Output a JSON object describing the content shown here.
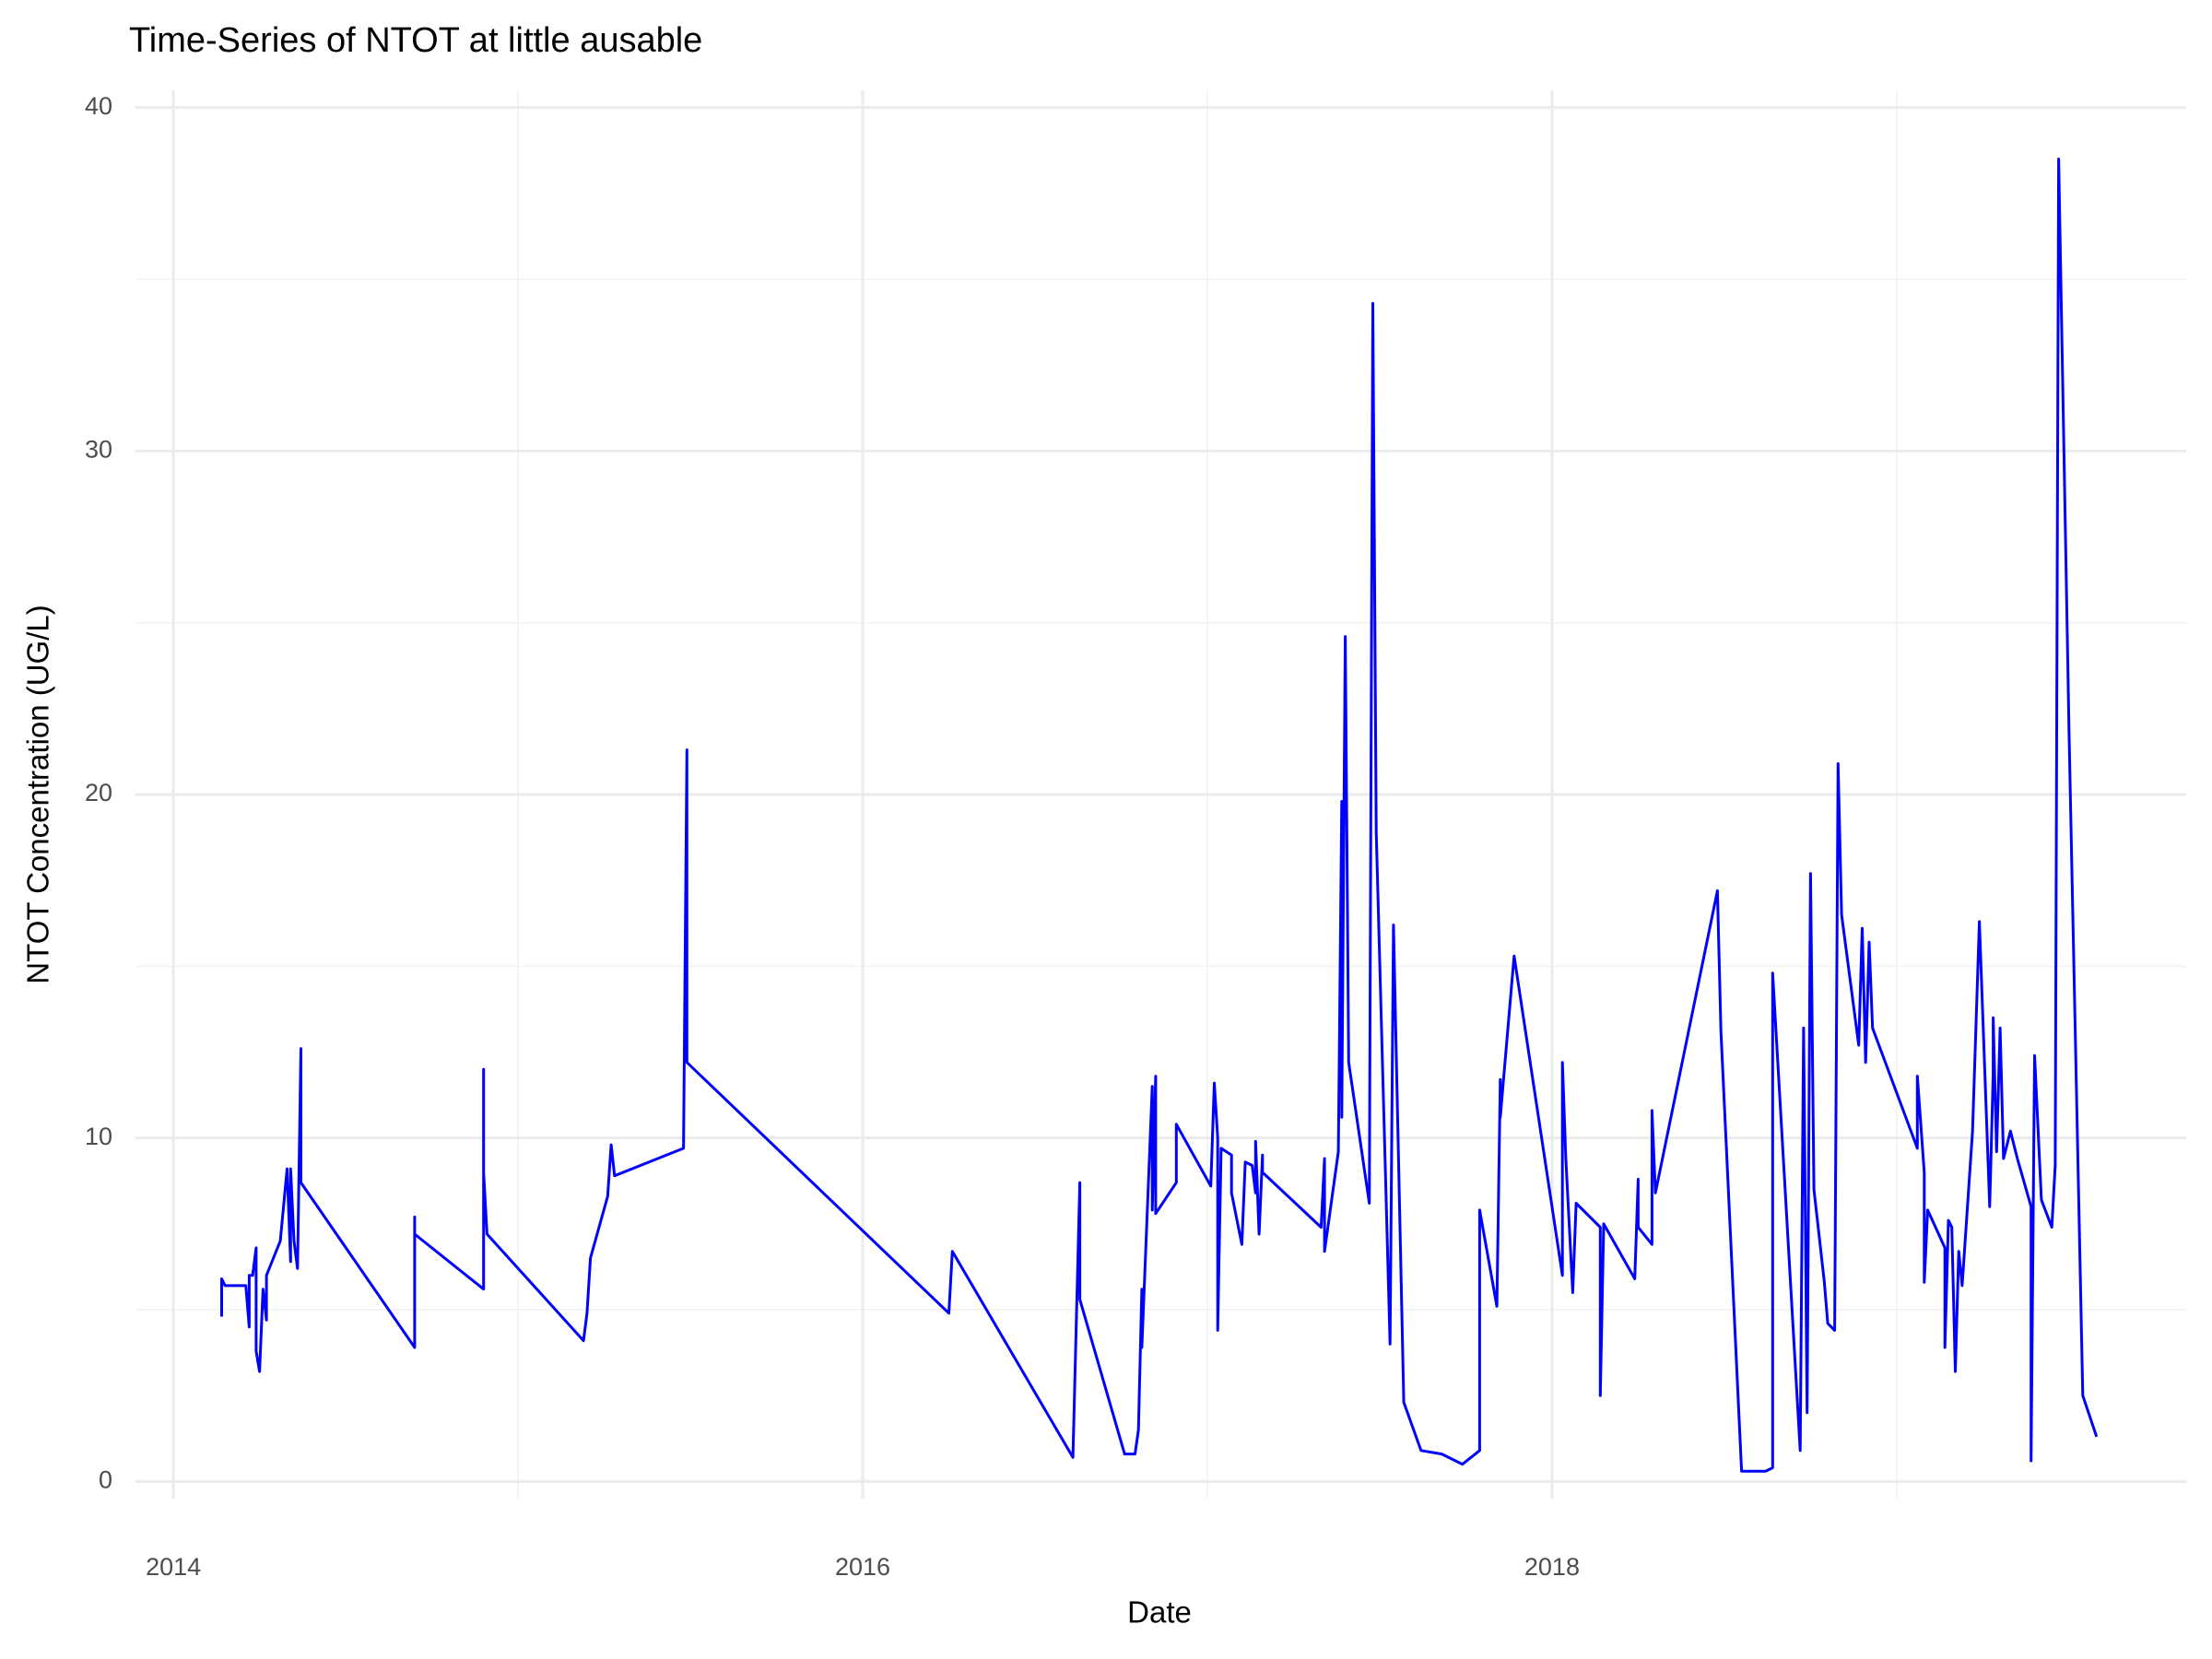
{
  "chart_data": {
    "type": "line",
    "title": "Time-Series of NTOT at little ausable",
    "x_label": "Date",
    "y_label": "NTOT Concentration (UG/L)",
    "color": "#0000ff",
    "grid": true,
    "xlim": [
      2013.89,
      2019.84
    ],
    "ylim": [
      -0.5,
      40.5
    ],
    "xticks": [
      2014,
      2016,
      2018
    ],
    "yticks": [
      0,
      10,
      20,
      30,
      40
    ],
    "xminor": [
      2015,
      2017,
      2019
    ],
    "yminor": [
      5,
      15,
      25,
      35
    ],
    "x": [
      2014.14,
      2014.14,
      2014.15,
      2014.21,
      2014.22,
      2014.22,
      2014.23,
      2014.24,
      2014.24,
      2014.25,
      2014.26,
      2014.27,
      2014.27,
      2014.31,
      2014.33,
      2014.34,
      2014.34,
      2014.35,
      2014.36,
      2014.37,
      2014.37,
      2014.7,
      2014.7,
      2014.7,
      2014.9,
      2014.9,
      2014.9,
      2014.91,
      2015.19,
      2015.2,
      2015.21,
      2015.26,
      2015.27,
      2015.28,
      2015.48,
      2015.49,
      2015.49,
      2016.25,
      2016.26,
      2016.61,
      2016.63,
      2016.63,
      2016.76,
      2016.79,
      2016.8,
      2016.81,
      2016.81,
      2016.84,
      2016.84,
      2016.85,
      2016.85,
      2016.91,
      2016.91,
      2017.01,
      2017.02,
      2017.03,
      2017.03,
      2017.04,
      2017.07,
      2017.07,
      2017.1,
      2017.11,
      2017.13,
      2017.14,
      2017.14,
      2017.15,
      2017.16,
      2017.16,
      2017.33,
      2017.34,
      2017.34,
      2017.38,
      2017.39,
      2017.39,
      2017.4,
      2017.41,
      2017.47,
      2017.48,
      2017.49,
      2017.53,
      2017.54,
      2017.57,
      2017.62,
      2017.68,
      2017.74,
      2017.79,
      2017.79,
      2017.84,
      2017.85,
      2017.85,
      2017.89,
      2018.03,
      2018.03,
      2018.04,
      2018.06,
      2018.07,
      2018.14,
      2018.14,
      2018.15,
      2018.24,
      2018.25,
      2018.25,
      2018.29,
      2018.29,
      2018.3,
      2018.48,
      2018.49,
      2018.55,
      2018.62,
      2018.64,
      2018.64,
      2018.72,
      2018.73,
      2018.74,
      2018.75,
      2018.76,
      2018.79,
      2018.8,
      2018.82,
      2018.83,
      2018.84,
      2018.89,
      2018.9,
      2018.91,
      2018.92,
      2018.93,
      2019.06,
      2019.06,
      2019.08,
      2019.08,
      2019.09,
      2019.14,
      2019.14,
      2019.15,
      2019.16,
      2019.17,
      2019.18,
      2019.19,
      2019.22,
      2019.24,
      2019.27,
      2019.28,
      2019.28,
      2019.29,
      2019.3,
      2019.31,
      2019.33,
      2019.35,
      2019.39,
      2019.39,
      2019.4,
      2019.42,
      2019.45,
      2019.46,
      2019.47,
      2019.5,
      2019.54,
      2019.58
    ],
    "values": [
      4.8,
      5.9,
      5.7,
      5.7,
      4.5,
      6.0,
      6.0,
      6.8,
      3.8,
      3.2,
      5.6,
      4.7,
      6.0,
      7.0,
      9.1,
      6.4,
      9.1,
      7.0,
      6.2,
      12.6,
      8.7,
      3.9,
      7.7,
      7.2,
      5.6,
      12.0,
      9.0,
      7.2,
      4.1,
      4.9,
      6.5,
      8.3,
      9.8,
      8.9,
      9.7,
      21.3,
      12.2,
      4.9,
      6.7,
      0.7,
      8.7,
      5.3,
      0.8,
      0.8,
      1.5,
      5.6,
      3.9,
      11.5,
      7.9,
      11.8,
      7.8,
      8.7,
      10.4,
      8.6,
      11.6,
      10.0,
      4.4,
      9.7,
      9.5,
      8.4,
      6.9,
      9.3,
      9.2,
      8.4,
      9.9,
      7.2,
      9.5,
      9.0,
      7.4,
      9.4,
      6.7,
      9.6,
      19.8,
      10.6,
      24.6,
      12.2,
      8.1,
      34.3,
      18.9,
      4.0,
      16.2,
      2.3,
      0.9,
      0.8,
      0.5,
      0.9,
      7.9,
      5.1,
      11.7,
      10.6,
      15.3,
      6.0,
      12.2,
      9.4,
      5.5,
      8.1,
      7.4,
      2.5,
      7.5,
      5.9,
      8.8,
      7.4,
      6.9,
      10.8,
      8.4,
      17.2,
      13.1,
      0.3,
      0.3,
      0.4,
      14.8,
      0.9,
      13.2,
      2.0,
      17.7,
      8.5,
      5.8,
      4.6,
      4.4,
      20.9,
      16.5,
      12.7,
      16.1,
      12.2,
      15.7,
      13.2,
      9.7,
      11.8,
      9.0,
      5.8,
      7.9,
      6.8,
      3.9,
      7.6,
      7.4,
      3.2,
      6.7,
      5.7,
      10.2,
      16.3,
      8.0,
      11.9,
      13.5,
      9.6,
      13.2,
      9.4,
      10.2,
      9.4,
      8.0,
      0.6,
      12.4,
      8.2,
      7.4,
      9.2,
      38.5,
      21.8,
      2.5,
      1.3
    ]
  }
}
